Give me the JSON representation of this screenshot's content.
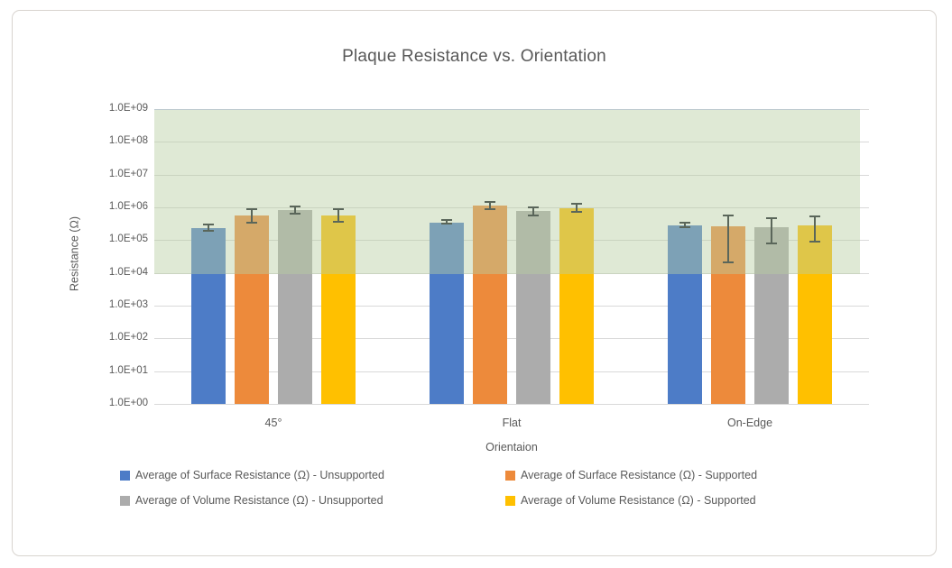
{
  "chart_data": {
    "type": "bar",
    "title": "Plaque Resistance vs. Orientation",
    "xlabel": "Orientaion",
    "ylabel": "Resistance (Ω)",
    "y_scale": "log",
    "ylim": [
      1,
      1000000000
    ],
    "y_ticks": [
      "1.0E+09",
      "1.0E+08",
      "1.0E+07",
      "1.0E+06",
      "1.0E+05",
      "1.0E+04",
      "1.0E+03",
      "1.0E+02",
      "1.0E+01",
      "1.0E+00"
    ],
    "grid": true,
    "legend_position": "bottom",
    "categories": [
      "45°",
      "Flat",
      "On-Edge"
    ],
    "series": [
      {
        "name": "Average of Surface Resistance (Ω) - Unsupported",
        "color": "#4D7CC7",
        "values": [
          240000,
          350000,
          290000
        ],
        "err_low": [
          190000,
          310000,
          250000
        ],
        "err_high": [
          300000,
          400000,
          340000
        ]
      },
      {
        "name": "Average of Surface Resistance (Ω) - Supported",
        "color": "#ED8A3B",
        "values": [
          550000,
          1150000,
          270000
        ],
        "err_low": [
          330000,
          880000,
          21000
        ],
        "err_high": [
          900000,
          1500000,
          560000
        ]
      },
      {
        "name": "Average of Volume Resistance (Ω) - Unsupported",
        "color": "#ACACAC",
        "values": [
          850000,
          780000,
          250000
        ],
        "err_low": [
          630000,
          560000,
          80000
        ],
        "err_high": [
          1050000,
          1000000,
          470000
        ]
      },
      {
        "name": "Average of Volume Resistance (Ω) - Supported",
        "color": "#FFC000",
        "values": [
          550000,
          950000,
          290000
        ],
        "err_low": [
          360000,
          740000,
          90000
        ],
        "err_high": [
          900000,
          1250000,
          530000
        ]
      }
    ],
    "highlight_band": {
      "from": 10000,
      "to": 1000000000,
      "color": "#B8CEA2",
      "opacity": 0.45
    },
    "error_bar_color": "#5a665a"
  }
}
